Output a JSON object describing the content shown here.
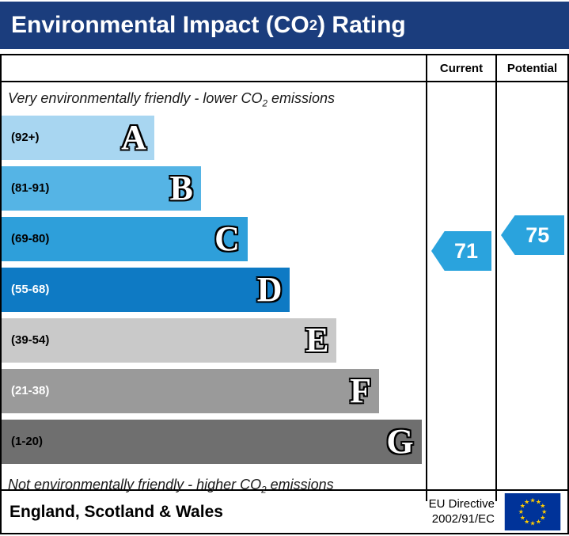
{
  "title": {
    "prefix": "Environmental Impact (CO",
    "sub": "2",
    "suffix": ") Rating"
  },
  "header": {
    "current": "Current",
    "potential": "Potential"
  },
  "notes": {
    "top": {
      "prefix": "Very environmentally friendly - lower CO",
      "sub": "2",
      "suffix": " emissions"
    },
    "bottom": {
      "prefix": "Not environmentally friendly - higher CO",
      "sub": "2",
      "suffix": " emissions"
    }
  },
  "bands": [
    {
      "letter": "A",
      "range": "(92+)",
      "color": "#a8d6f1",
      "width_pct": 36,
      "range_color": "#000000"
    },
    {
      "letter": "B",
      "range": "(81-91)",
      "color": "#55b4e5",
      "width_pct": 47,
      "range_color": "#000000"
    },
    {
      "letter": "C",
      "range": "(69-80)",
      "color": "#2e9fda",
      "width_pct": 58,
      "range_color": "#000000"
    },
    {
      "letter": "D",
      "range": "(55-68)",
      "color": "#0e7ac4",
      "width_pct": 68,
      "range_color": "#ffffff"
    },
    {
      "letter": "E",
      "range": "(39-54)",
      "color": "#c9c9c9",
      "width_pct": 79,
      "range_color": "#000000"
    },
    {
      "letter": "F",
      "range": "(21-38)",
      "color": "#9a9a9a",
      "width_pct": 89,
      "range_color": "#ffffff"
    },
    {
      "letter": "G",
      "range": "(1-20)",
      "color": "#6f6f6f",
      "width_pct": 99,
      "range_color": "#000000"
    }
  ],
  "ratings": {
    "current": {
      "value": "71",
      "color": "#2aa3dd"
    },
    "potential": {
      "value": "75",
      "color": "#2aa3dd"
    }
  },
  "footer": {
    "region": "England, Scotland & Wales",
    "directive_line1": "EU Directive",
    "directive_line2": "2002/91/EC",
    "flag": {
      "bg": "#003399",
      "star": "#ffcc00"
    }
  },
  "colors": {
    "title_bar": "#1b3d7d",
    "border": "#000000"
  },
  "chart_data": {
    "type": "bar",
    "title": "Environmental Impact (CO2) Rating",
    "categories": [
      "A",
      "B",
      "C",
      "D",
      "E",
      "F",
      "G"
    ],
    "ranges": [
      "92+",
      "81-91",
      "69-80",
      "55-68",
      "39-54",
      "21-38",
      "1-20"
    ],
    "bar_lengths_pct": [
      36,
      47,
      58,
      68,
      79,
      89,
      99
    ],
    "bar_colors": [
      "#a8d6f1",
      "#55b4e5",
      "#2e9fda",
      "#0e7ac4",
      "#c9c9c9",
      "#9a9a9a",
      "#6f6f6f"
    ],
    "current": 71,
    "current_band": "C",
    "potential": 75,
    "potential_band": "C",
    "top_annotation": "Very environmentally friendly - lower CO2 emissions",
    "bottom_annotation": "Not environmentally friendly - higher CO2 emissions",
    "region": "England, Scotland & Wales",
    "directive": "EU Directive 2002/91/EC",
    "legend_position": "none",
    "grid": false
  }
}
